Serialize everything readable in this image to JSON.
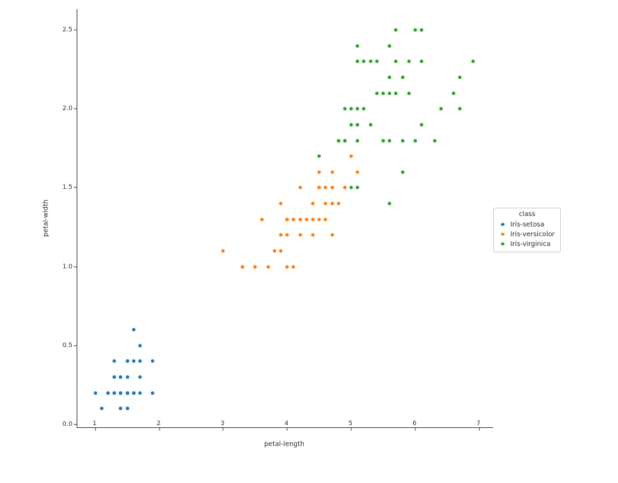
{
  "chart_data": {
    "type": "scatter",
    "title": "",
    "xlabel": "petal-length",
    "ylabel": "petal-width",
    "xlim": [
      0.72,
      7.22
    ],
    "ylim": [
      -0.018,
      2.633
    ],
    "grid": false,
    "x_ticks": {
      "values": [
        1,
        2,
        3,
        4,
        5,
        6,
        7
      ],
      "labels": [
        "1",
        "2",
        "3",
        "4",
        "5",
        "6",
        "7"
      ]
    },
    "y_ticks": {
      "values": [
        0.0,
        0.5,
        1.0,
        1.5,
        2.0,
        2.5
      ],
      "labels": [
        "0.0",
        "0.5",
        "1.0",
        "1.5",
        "2.0",
        "2.5"
      ]
    },
    "legend": {
      "title": "class",
      "position": "right-outside"
    },
    "series": [
      {
        "name": "Iris-setosa",
        "color": "#1f77b4",
        "points": [
          [
            1.4,
            0.2
          ],
          [
            1.4,
            0.2
          ],
          [
            1.3,
            0.2
          ],
          [
            1.5,
            0.2
          ],
          [
            1.4,
            0.2
          ],
          [
            1.7,
            0.4
          ],
          [
            1.4,
            0.3
          ],
          [
            1.5,
            0.2
          ],
          [
            1.4,
            0.2
          ],
          [
            1.5,
            0.1
          ],
          [
            1.5,
            0.2
          ],
          [
            1.6,
            0.2
          ],
          [
            1.4,
            0.1
          ],
          [
            1.1,
            0.1
          ],
          [
            1.2,
            0.2
          ],
          [
            1.5,
            0.4
          ],
          [
            1.3,
            0.4
          ],
          [
            1.4,
            0.3
          ],
          [
            1.7,
            0.3
          ],
          [
            1.5,
            0.3
          ],
          [
            1.7,
            0.2
          ],
          [
            1.5,
            0.4
          ],
          [
            1.0,
            0.2
          ],
          [
            1.7,
            0.5
          ],
          [
            1.9,
            0.2
          ],
          [
            1.6,
            0.2
          ],
          [
            1.6,
            0.4
          ],
          [
            1.5,
            0.2
          ],
          [
            1.4,
            0.2
          ],
          [
            1.6,
            0.2
          ],
          [
            1.6,
            0.2
          ],
          [
            1.5,
            0.4
          ],
          [
            1.5,
            0.1
          ],
          [
            1.4,
            0.2
          ],
          [
            1.5,
            0.2
          ],
          [
            1.2,
            0.2
          ],
          [
            1.3,
            0.2
          ],
          [
            1.4,
            0.1
          ],
          [
            1.3,
            0.2
          ],
          [
            1.5,
            0.2
          ],
          [
            1.3,
            0.3
          ],
          [
            1.3,
            0.3
          ],
          [
            1.3,
            0.2
          ],
          [
            1.6,
            0.6
          ],
          [
            1.9,
            0.4
          ],
          [
            1.4,
            0.3
          ],
          [
            1.6,
            0.2
          ],
          [
            1.4,
            0.2
          ],
          [
            1.5,
            0.2
          ],
          [
            1.4,
            0.2
          ]
        ]
      },
      {
        "name": "Iris-versicolor",
        "color": "#ff7f0e",
        "points": [
          [
            4.7,
            1.4
          ],
          [
            4.5,
            1.5
          ],
          [
            4.9,
            1.5
          ],
          [
            4.0,
            1.3
          ],
          [
            4.6,
            1.5
          ],
          [
            4.5,
            1.3
          ],
          [
            4.7,
            1.6
          ],
          [
            3.3,
            1.0
          ],
          [
            4.6,
            1.3
          ],
          [
            3.9,
            1.4
          ],
          [
            3.5,
            1.0
          ],
          [
            4.2,
            1.5
          ],
          [
            4.0,
            1.0
          ],
          [
            4.7,
            1.4
          ],
          [
            3.6,
            1.3
          ],
          [
            4.4,
            1.4
          ],
          [
            4.5,
            1.5
          ],
          [
            4.1,
            1.0
          ],
          [
            4.5,
            1.5
          ],
          [
            3.9,
            1.1
          ],
          [
            4.8,
            1.8
          ],
          [
            4.0,
            1.3
          ],
          [
            4.9,
            1.5
          ],
          [
            4.7,
            1.2
          ],
          [
            4.3,
            1.3
          ],
          [
            4.4,
            1.4
          ],
          [
            4.8,
            1.4
          ],
          [
            5.0,
            1.7
          ],
          [
            4.5,
            1.5
          ],
          [
            3.5,
            1.0
          ],
          [
            3.8,
            1.1
          ],
          [
            3.7,
            1.0
          ],
          [
            3.9,
            1.2
          ],
          [
            5.1,
            1.6
          ],
          [
            4.5,
            1.5
          ],
          [
            4.5,
            1.6
          ],
          [
            4.7,
            1.5
          ],
          [
            4.4,
            1.3
          ],
          [
            4.1,
            1.3
          ],
          [
            4.0,
            1.3
          ],
          [
            4.4,
            1.2
          ],
          [
            4.6,
            1.4
          ],
          [
            4.0,
            1.2
          ],
          [
            3.3,
            1.0
          ],
          [
            4.2,
            1.3
          ],
          [
            4.2,
            1.2
          ],
          [
            4.2,
            1.3
          ],
          [
            4.3,
            1.3
          ],
          [
            3.0,
            1.1
          ],
          [
            4.1,
            1.3
          ]
        ]
      },
      {
        "name": "Iris-virginica",
        "color": "#2ca02c",
        "points": [
          [
            6.0,
            2.5
          ],
          [
            5.1,
            1.9
          ],
          [
            5.9,
            2.1
          ],
          [
            5.6,
            1.8
          ],
          [
            5.8,
            2.2
          ],
          [
            6.6,
            2.1
          ],
          [
            4.5,
            1.7
          ],
          [
            6.3,
            1.8
          ],
          [
            5.8,
            1.8
          ],
          [
            6.1,
            2.5
          ],
          [
            5.1,
            2.0
          ],
          [
            5.3,
            1.9
          ],
          [
            5.5,
            2.1
          ],
          [
            5.0,
            2.0
          ],
          [
            5.1,
            2.4
          ],
          [
            5.3,
            2.3
          ],
          [
            5.5,
            1.8
          ],
          [
            6.7,
            2.2
          ],
          [
            6.9,
            2.3
          ],
          [
            5.0,
            1.5
          ],
          [
            5.7,
            2.3
          ],
          [
            4.9,
            2.0
          ],
          [
            6.7,
            2.0
          ],
          [
            4.9,
            1.8
          ],
          [
            5.7,
            2.1
          ],
          [
            6.0,
            1.8
          ],
          [
            4.8,
            1.8
          ],
          [
            4.9,
            1.8
          ],
          [
            5.6,
            2.1
          ],
          [
            5.8,
            1.6
          ],
          [
            6.1,
            1.9
          ],
          [
            6.4,
            2.0
          ],
          [
            5.6,
            2.2
          ],
          [
            5.1,
            1.5
          ],
          [
            5.6,
            1.4
          ],
          [
            6.1,
            2.3
          ],
          [
            5.6,
            2.4
          ],
          [
            5.5,
            1.8
          ],
          [
            4.8,
            1.8
          ],
          [
            5.4,
            2.1
          ],
          [
            5.6,
            2.4
          ],
          [
            5.1,
            2.3
          ],
          [
            5.1,
            1.9
          ],
          [
            5.9,
            2.3
          ],
          [
            5.7,
            2.5
          ],
          [
            5.2,
            2.3
          ],
          [
            5.0,
            1.9
          ],
          [
            5.2,
            2.0
          ],
          [
            5.4,
            2.3
          ],
          [
            5.1,
            1.8
          ]
        ]
      }
    ]
  }
}
